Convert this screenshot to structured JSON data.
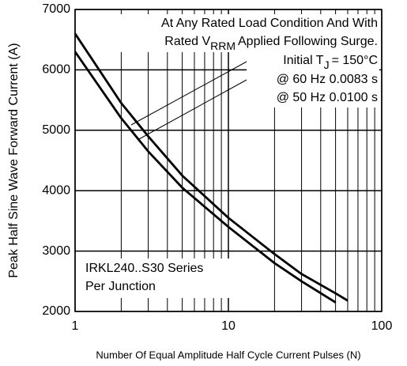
{
  "chart_data": {
    "type": "line",
    "x_label": "Number Of Equal Amplitude Half Cycle Current Pulses (N)",
    "y_label": "Peak Half Sine Wave Forward Current (A)",
    "xscale": "log",
    "xlim": [
      1,
      100
    ],
    "xticks": [
      1,
      10,
      100
    ],
    "xminorticks": [
      2,
      3,
      4,
      5,
      6,
      7,
      8,
      9,
      20,
      30,
      40,
      50,
      60,
      70,
      80,
      90
    ],
    "ylim": [
      2000,
      7000
    ],
    "yticks": [
      2000,
      3000,
      4000,
      5000,
      6000,
      7000
    ],
    "grid": true,
    "annotations": {
      "condition": "At Any Rated Load Condition And With",
      "rated_v": {
        "main": "Rated V",
        "sub": "RRM",
        "rest": "Applied Following Surge."
      },
      "initial": {
        "main": "Initial T",
        "sub": "J",
        "rest": "= 150°C"
      },
      "device": "IRKL240..S30 Series",
      "junction": "Per Junction"
    },
    "series": [
      {
        "name": "@ 60 Hz 0.0083 s",
        "color": "#000000",
        "x": [
          1,
          2,
          3,
          5,
          10,
          20,
          30,
          50,
          60
        ],
        "values": [
          6600,
          5450,
          4900,
          4250,
          3550,
          2950,
          2620,
          2300,
          2180
        ]
      },
      {
        "name": "@ 50 Hz 0.0100 s",
        "color": "#000000",
        "x": [
          1,
          2,
          3,
          5,
          10,
          20,
          30,
          50
        ],
        "values": [
          6300,
          5200,
          4650,
          4050,
          3400,
          2800,
          2500,
          2150
        ]
      }
    ]
  }
}
